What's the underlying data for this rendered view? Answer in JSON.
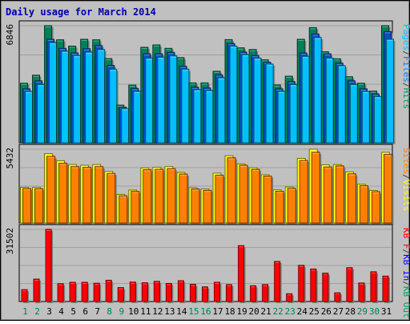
{
  "header": {
    "title": "Daily usage for March 2014"
  },
  "chart_data": {
    "type": "bar",
    "title": "Daily usage for March 2014",
    "categories": [
      "1",
      "2",
      "3",
      "4",
      "5",
      "6",
      "7",
      "8",
      "9",
      "10",
      "11",
      "12",
      "13",
      "14",
      "15",
      "16",
      "17",
      "18",
      "19",
      "20",
      "21",
      "22",
      "23",
      "24",
      "25",
      "26",
      "27",
      "28",
      "29",
      "30",
      "31"
    ],
    "weekend_days": [
      "1",
      "2",
      "8",
      "9",
      "15",
      "16",
      "22",
      "23",
      "29",
      "30"
    ],
    "panels": [
      {
        "name": "hits-files-pages",
        "ymax_label": "6846",
        "ymax": 6846,
        "labels": [
          "Pages",
          "/",
          "Files",
          "/",
          "Hits"
        ],
        "label_colors": [
          "#00c0ff",
          "#404040",
          "#0080ff",
          "#404040",
          "#00a060"
        ],
        "series": [
          {
            "name": "Hits",
            "color": "#00805a",
            "values": [
              3480,
              3950,
              6846,
              6020,
              5650,
              6050,
              6020,
              4920,
              2200,
              3370,
              5580,
              5720,
              5520,
              4980,
              3500,
              3500,
              4180,
              6030,
              5550,
              5450,
              4850,
              3380,
              3890,
              6050,
              6730,
              5320,
              4910,
              3860,
              3480,
              3020,
              6846
            ]
          },
          {
            "name": "Files",
            "color": "#0050c0",
            "values": [
              3150,
              3620,
              6050,
              5520,
              5250,
              5500,
              5680,
              4520,
              2080,
              3170,
              5200,
              5200,
              5280,
              4480,
              3250,
              3200,
              3970,
              5800,
              5300,
              5100,
              4700,
              3150,
              3580,
              5250,
              6360,
              5200,
              4650,
              3620,
              3150,
              2850,
              6500
            ]
          },
          {
            "name": "Pages",
            "color": "#00c0ff",
            "values": [
              3000,
              3400,
              5850,
              5350,
              5100,
              5300,
              5450,
              4300,
              2000,
              3000,
              4950,
              5000,
              5080,
              4300,
              3100,
              3050,
              3800,
              5650,
              5150,
              4950,
              4600,
              3000,
              3400,
              5050,
              6150,
              4950,
              4500,
              3400,
              3000,
              2700,
              6050
            ]
          }
        ]
      },
      {
        "name": "visits-sites",
        "ymax_label": "5432",
        "ymax": 5432,
        "labels": [
          "Sites",
          "/",
          "Visits"
        ],
        "label_colors": [
          "#ff8000",
          "#404040",
          "#ffff00"
        ],
        "series": [
          {
            "name": "Visits",
            "color": "#ffff00",
            "values": [
              2620,
              2620,
              5100,
              4580,
              4300,
              4250,
              4300,
              3800,
              2100,
              2420,
              4050,
              4100,
              4150,
              3720,
              2600,
              2500,
              3670,
              4950,
              4350,
              4070,
              3550,
              2440,
              2650,
              4750,
              5432,
              4280,
              4300,
              3760,
              2850,
              2390,
              5200
            ]
          },
          {
            "name": "Sites",
            "color": "#ff8000",
            "values": [
              2530,
              2520,
              4900,
              4400,
              4150,
              4100,
              4150,
              3650,
              2000,
              2320,
              3920,
              3950,
              4000,
              3600,
              2500,
              2400,
              3520,
              4800,
              4250,
              3950,
              3450,
              2330,
              2550,
              4600,
              5200,
              4120,
              4200,
              3620,
              2750,
              2300,
              5050
            ]
          }
        ]
      },
      {
        "name": "kb",
        "ymax_label": "31502",
        "ymax": 31502,
        "labels": [
          "KB F",
          "/",
          "KB In",
          "/",
          "KB Out"
        ],
        "label_colors": [
          "#ff0000",
          "#404040",
          "#0000ff",
          "#404040",
          "#00a060"
        ],
        "series": [
          {
            "name": "KB F",
            "color": "#ff0000",
            "values": [
              5200,
              9800,
              31502,
              7800,
              8400,
              8400,
              8000,
              9300,
              6100,
              8500,
              8200,
              8800,
              7900,
              9100,
              7500,
              6400,
              8400,
              7400,
              24400,
              6900,
              7400,
              17500,
              3400,
              15800,
              14200,
              12400,
              3800,
              14800,
              8100,
              13000,
              11100
            ]
          }
        ]
      }
    ]
  }
}
